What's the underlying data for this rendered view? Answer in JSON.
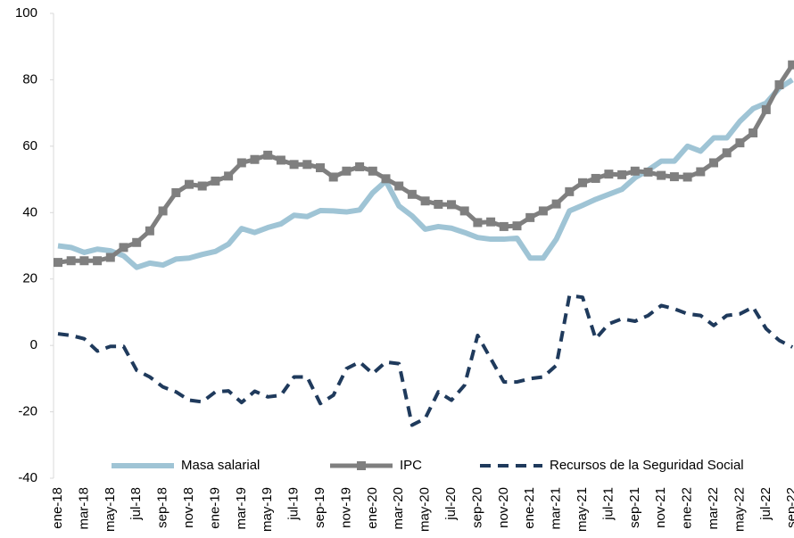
{
  "chart_data": {
    "type": "line",
    "categories": [
      "ene-18",
      null,
      "mar-18",
      null,
      "may-18",
      null,
      "jul-18",
      null,
      "sep-18",
      null,
      "nov-18",
      null,
      "ene-19",
      null,
      "mar-19",
      null,
      "may-19",
      null,
      "jul-19",
      null,
      "sep-19",
      null,
      "nov-19",
      null,
      "ene-20",
      null,
      "mar-20",
      null,
      "may-20",
      null,
      "jul-20",
      null,
      "sep-20",
      null,
      "nov-20",
      null,
      "ene-21",
      null,
      "mar-21",
      null,
      "may-21",
      null,
      "jul-21",
      null,
      "sep-21",
      null,
      "nov-21",
      null,
      "ene-22",
      null,
      "mar-22",
      null,
      "may-22",
      null,
      "jul-22",
      null,
      "sep-22"
    ],
    "series": [
      {
        "name": "Masa salarial",
        "color": "#9fc4d5",
        "values": [
          30,
          29.5,
          28,
          29,
          28.5,
          27,
          23.5,
          24.8,
          24.2,
          26,
          26.3,
          27.4,
          28.3,
          30.5,
          35.2,
          34,
          35.5,
          36.6,
          39.2,
          38.8,
          40.6,
          40.5,
          40.2,
          40.8,
          46,
          49.5,
          42,
          39,
          35,
          35.8,
          35.3,
          34,
          32.5,
          32,
          32,
          32.3,
          26.3,
          26.3,
          32,
          40.5,
          42.2,
          44,
          45.5,
          47,
          50.5,
          52.8,
          55.5,
          55.5,
          60,
          58.5,
          62.5,
          62.5,
          67.5,
          71.3,
          73,
          77.5,
          80
        ]
      },
      {
        "name": "IPC",
        "color": "#7f7f7f",
        "marker": "square",
        "values": [
          25,
          25.5,
          25.5,
          25.5,
          26.5,
          29.5,
          31,
          34.5,
          40.5,
          46,
          48.5,
          48,
          49.5,
          51,
          55,
          56,
          57.3,
          55.8,
          54.5,
          54.5,
          53.5,
          50.7,
          52.5,
          53.8,
          52.5,
          50.2,
          48,
          45.5,
          43.5,
          42.5,
          42.4,
          40.5,
          37,
          37.2,
          35.8,
          36,
          38.5,
          40.5,
          42.6,
          46.3,
          49,
          50.3,
          51.6,
          51.4,
          52.5,
          52.2,
          51.2,
          50.8,
          50.7,
          52.3,
          55,
          58,
          61,
          64,
          71,
          78.5,
          84.5
        ]
      },
      {
        "name": "Recursos de la Seguridad Social",
        "color": "#1f3a5c",
        "dash": "dashed",
        "values": [
          3.5,
          3,
          2,
          -1.7,
          -0.3,
          -0.3,
          -7.5,
          -9.5,
          -12.5,
          -14,
          -16.5,
          -17,
          -14,
          -13.7,
          -17.2,
          -13.8,
          -15.5,
          -15,
          -9.5,
          -9.5,
          -17.5,
          -15,
          -7,
          -5,
          -8.5,
          -5,
          -5.5,
          -24,
          -22,
          -14,
          -16.5,
          -12,
          3,
          -4,
          -11,
          -11,
          -10,
          -9.5,
          -6,
          15,
          14.5,
          2,
          6.5,
          8,
          7.3,
          9,
          12,
          11,
          9.5,
          9,
          6,
          9,
          9.5,
          11.5,
          5,
          1.5,
          -0.5
        ]
      }
    ],
    "ylim": [
      -40,
      100
    ],
    "yticks": [
      -40,
      -20,
      0,
      20,
      40,
      60,
      80,
      100
    ],
    "grid": false,
    "legend": "bottom"
  }
}
